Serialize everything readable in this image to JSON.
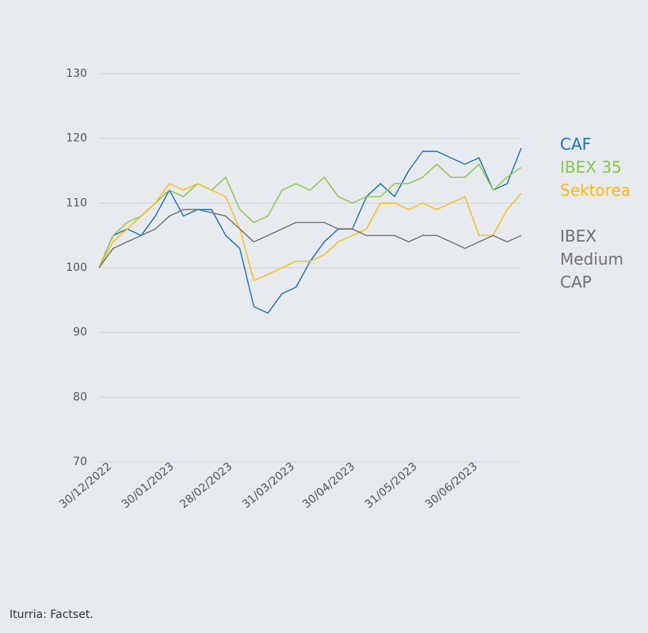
{
  "chart_data": {
    "type": "line",
    "x": [
      "30/12/2022",
      "06/01/2023",
      "13/01/2023",
      "20/01/2023",
      "27/01/2023",
      "03/02/2023",
      "10/02/2023",
      "17/02/2023",
      "24/02/2023",
      "03/03/2023",
      "10/03/2023",
      "17/03/2023",
      "24/03/2023",
      "31/03/2023",
      "07/04/2023",
      "14/04/2023",
      "21/04/2023",
      "28/04/2023",
      "05/05/2023",
      "12/05/2023",
      "19/05/2023",
      "26/05/2023",
      "02/06/2023",
      "09/06/2023",
      "16/06/2023",
      "23/06/2023",
      "30/06/2023",
      "07/07/2023",
      "14/07/2023",
      "21/07/2023",
      "28/07/2023"
    ],
    "series": [
      {
        "name": "CAF",
        "color": "#1a6fb5",
        "values": [
          100,
          105,
          106,
          105,
          108,
          112,
          108,
          109,
          109,
          105,
          103,
          94,
          93,
          96,
          97,
          101,
          104,
          106,
          106,
          111,
          113,
          111,
          115,
          118,
          118,
          117,
          116,
          117,
          112,
          113,
          118.5
        ]
      },
      {
        "name": "IBEX 35",
        "color": "#8cc84b",
        "values": [
          100,
          105,
          107,
          108,
          110,
          112,
          111,
          113,
          112,
          114,
          109,
          107,
          108,
          112,
          113,
          112,
          114,
          111,
          110,
          111,
          111,
          113,
          113,
          114,
          116,
          114,
          114,
          116,
          112,
          114,
          115.5
        ]
      },
      {
        "name": "Sektorea",
        "color": "#fdbb13",
        "values": [
          100,
          104,
          106,
          108,
          110,
          113,
          112,
          113,
          112,
          111,
          106,
          98,
          99,
          100,
          101,
          101,
          102,
          104,
          105,
          106,
          110,
          110,
          109,
          110,
          109,
          110,
          111,
          105,
          105,
          109,
          111.5
        ]
      },
      {
        "name": "IBEX Medium CAP",
        "color": "#707070",
        "values": [
          100,
          103,
          104,
          105,
          106,
          108,
          109,
          109,
          108.5,
          108,
          106,
          104,
          105,
          106,
          107,
          107,
          107,
          106,
          106,
          105,
          105,
          105,
          104,
          105,
          105,
          104,
          103,
          104,
          105,
          104,
          105
        ]
      }
    ],
    "xlim": [
      "30/12/2022",
      "28/07/2023"
    ],
    "xticks": [
      "30/12/2022",
      "30/01/2023",
      "28/02/2023",
      "31/03/2023",
      "30/04/2023",
      "31/05/2023",
      "30/06/2023"
    ],
    "ylim": [
      70,
      130
    ],
    "yticks": [
      70,
      80,
      90,
      100,
      110,
      120,
      130
    ],
    "grid": true,
    "source": "Iturria: Factset."
  }
}
